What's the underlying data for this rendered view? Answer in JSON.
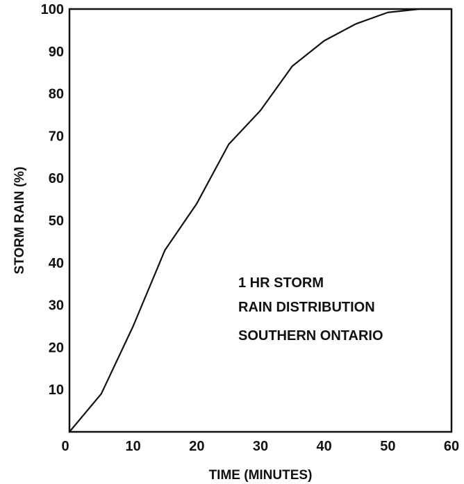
{
  "chart_data": {
    "type": "line",
    "title": "",
    "xlabel": "TIME (MINUTES)",
    "ylabel": "STORM RAIN (%)",
    "xlim": [
      0,
      60
    ],
    "ylim": [
      0,
      100
    ],
    "x_ticks": [
      0,
      10,
      20,
      30,
      40,
      50,
      60
    ],
    "y_ticks": [
      10,
      20,
      30,
      40,
      50,
      60,
      70,
      80,
      90,
      100
    ],
    "grid": false,
    "legend": null,
    "annotation": [
      "1 HR STORM",
      "RAIN DISTRIBUTION",
      "SOUTHERN ONTARIO"
    ],
    "series": [
      {
        "x": [
          0,
          5,
          10,
          15,
          20,
          25,
          30,
          35,
          40,
          45,
          50,
          55,
          60
        ],
        "y": [
          0,
          9,
          25,
          43,
          54,
          68,
          76,
          86.5,
          92.5,
          96.5,
          99.2,
          100,
          100
        ]
      }
    ]
  }
}
